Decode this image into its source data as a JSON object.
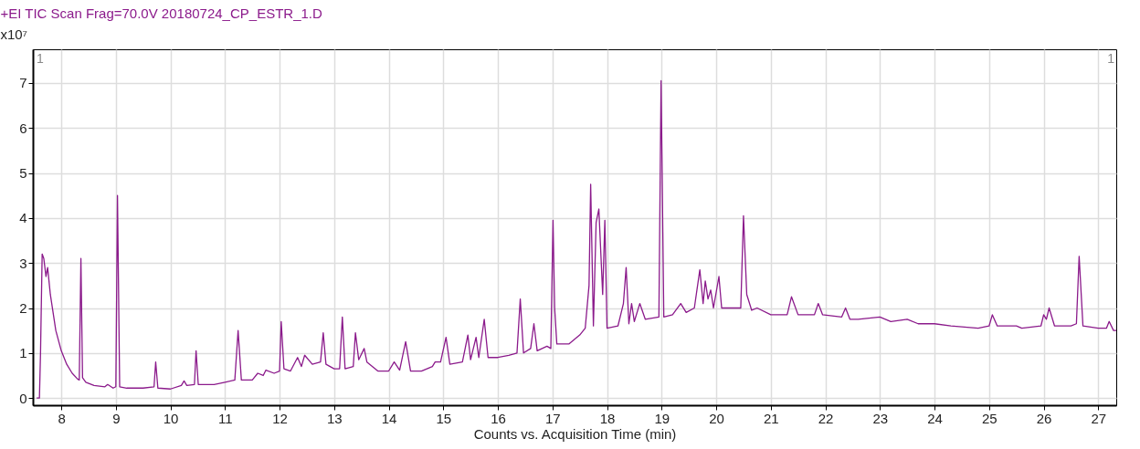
{
  "chart_data": {
    "type": "line",
    "title": "+EI TIC Scan Frag=70.0V 20180724_CP_ESTR_1.D",
    "xlabel": "Counts vs. Acquisition Time (min)",
    "ylabel": "x10⁷",
    "annotations": [
      "1",
      "1"
    ],
    "xlim": [
      7.48,
      27.33
    ],
    "xticks": [
      8,
      9,
      10,
      11,
      12,
      13,
      14,
      15,
      16,
      17,
      18,
      19,
      20,
      21,
      22,
      23,
      24,
      25,
      26,
      27
    ],
    "ylim": [
      -0.16,
      7.75
    ],
    "yticks": [
      0,
      1,
      2,
      3,
      4,
      5,
      6,
      7
    ],
    "grid": true,
    "marker": "none",
    "line_style": "solid",
    "series": [
      {
        "color": "#8b1a8b",
        "x": [
          7.55,
          7.6,
          7.62,
          7.65,
          7.68,
          7.72,
          7.75,
          7.8,
          7.9,
          8.0,
          8.1,
          8.2,
          8.3,
          8.33,
          8.36,
          8.39,
          8.45,
          8.6,
          8.8,
          8.85,
          8.95,
          9.0,
          9.03,
          9.07,
          9.2,
          9.5,
          9.7,
          9.73,
          9.77,
          10.0,
          10.2,
          10.25,
          10.3,
          10.44,
          10.47,
          10.51,
          10.8,
          11.0,
          11.18,
          11.24,
          11.3,
          11.5,
          11.6,
          11.7,
          11.75,
          11.9,
          12.0,
          12.03,
          12.08,
          12.2,
          12.33,
          12.4,
          12.46,
          12.6,
          12.75,
          12.8,
          12.85,
          13.0,
          13.1,
          13.15,
          13.2,
          13.35,
          13.39,
          13.45,
          13.55,
          13.6,
          13.8,
          14.0,
          14.1,
          14.2,
          14.31,
          14.4,
          14.6,
          14.8,
          14.85,
          14.95,
          15.05,
          15.12,
          15.35,
          15.45,
          15.5,
          15.6,
          15.65,
          15.75,
          15.82,
          16.0,
          16.2,
          16.35,
          16.41,
          16.47,
          16.6,
          16.66,
          16.72,
          16.9,
          16.97,
          17.01,
          17.04,
          17.08,
          17.3,
          17.5,
          17.6,
          17.67,
          17.7,
          17.75,
          17.8,
          17.85,
          17.92,
          17.96,
          18.0,
          18.2,
          18.3,
          18.35,
          18.4,
          18.45,
          18.5,
          18.6,
          18.7,
          18.95,
          18.99,
          19.04,
          19.2,
          19.35,
          19.45,
          19.6,
          19.7,
          19.76,
          19.8,
          19.85,
          19.9,
          19.95,
          20.05,
          20.1,
          20.45,
          20.5,
          20.56,
          20.65,
          20.75,
          21.0,
          21.2,
          21.3,
          21.38,
          21.5,
          21.8,
          21.87,
          21.95,
          22.3,
          22.37,
          22.45,
          22.6,
          23.0,
          23.2,
          23.5,
          23.7,
          24.0,
          24.3,
          24.8,
          25.0,
          25.06,
          25.15,
          25.5,
          25.6,
          25.95,
          26.0,
          26.05,
          26.1,
          26.2,
          26.5,
          26.6,
          26.65,
          26.72,
          27.0,
          27.15,
          27.2,
          27.28,
          27.33
        ],
        "values": [
          0,
          0,
          1.0,
          3.2,
          3.1,
          2.7,
          2.9,
          2.3,
          1.5,
          1.05,
          0.75,
          0.55,
          0.42,
          0.4,
          3.1,
          0.45,
          0.35,
          0.28,
          0.25,
          0.3,
          0.22,
          0.25,
          4.5,
          0.25,
          0.22,
          0.22,
          0.25,
          0.8,
          0.22,
          0.2,
          0.28,
          0.38,
          0.28,
          0.3,
          1.05,
          0.3,
          0.3,
          0.35,
          0.4,
          1.5,
          0.4,
          0.4,
          0.55,
          0.5,
          0.62,
          0.55,
          0.6,
          1.7,
          0.65,
          0.6,
          0.9,
          0.7,
          0.95,
          0.75,
          0.8,
          1.45,
          0.75,
          0.65,
          0.65,
          1.8,
          0.65,
          0.7,
          1.45,
          0.85,
          1.1,
          0.8,
          0.6,
          0.6,
          0.8,
          0.62,
          1.25,
          0.6,
          0.6,
          0.7,
          0.8,
          0.8,
          1.35,
          0.75,
          0.8,
          1.4,
          0.85,
          1.35,
          0.9,
          1.75,
          0.9,
          0.9,
          0.95,
          1.0,
          2.2,
          1.0,
          1.1,
          1.65,
          1.05,
          1.15,
          1.1,
          3.95,
          2.0,
          1.2,
          1.2,
          1.4,
          1.55,
          2.5,
          4.75,
          1.6,
          3.9,
          4.2,
          2.3,
          3.95,
          1.55,
          1.6,
          2.1,
          2.9,
          1.65,
          2.1,
          1.7,
          2.1,
          1.75,
          1.8,
          7.05,
          1.8,
          1.85,
          2.1,
          1.9,
          2.0,
          2.85,
          2.1,
          2.6,
          2.2,
          2.4,
          2.0,
          2.7,
          2.0,
          2.0,
          4.05,
          2.3,
          1.95,
          2.0,
          1.85,
          1.85,
          1.85,
          2.25,
          1.85,
          1.85,
          2.1,
          1.85,
          1.8,
          2.0,
          1.75,
          1.75,
          1.8,
          1.7,
          1.75,
          1.65,
          1.65,
          1.6,
          1.55,
          1.6,
          1.85,
          1.6,
          1.6,
          1.55,
          1.6,
          1.85,
          1.75,
          2.0,
          1.6,
          1.6,
          1.65,
          3.15,
          1.6,
          1.55,
          1.55,
          1.7,
          1.5,
          1.5
        ]
      }
    ]
  }
}
